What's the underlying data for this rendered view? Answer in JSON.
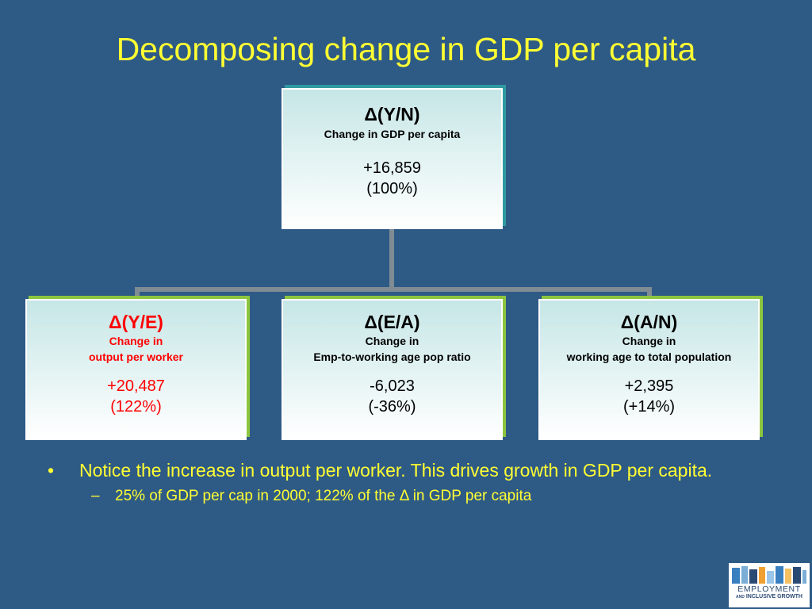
{
  "slide": {
    "title": "Decomposing change in GDP per capita",
    "colors": {
      "background": "#2e5a86",
      "title": "#ffff33",
      "connector": "#7f8c94",
      "top_box_accent": "#2f9aa0",
      "child_box_accent": "#8cc63f",
      "highlight": "#ff0000"
    }
  },
  "diagram": {
    "root": {
      "symbol": "Δ(Y/N)",
      "label": "Change in GDP per capita",
      "value": "+16,859",
      "percent": "(100%)"
    },
    "children": [
      {
        "symbol": "Δ(Y/E)",
        "label_line1": "Change in",
        "label_line2": "output per worker",
        "value": "+20,487",
        "percent": "(122%)",
        "highlighted": true
      },
      {
        "symbol": "Δ(E/A)",
        "label_line1": "Change in",
        "label_line2": "Emp-to-working age pop ratio",
        "value": "-6,023",
        "percent": "(-36%)",
        "highlighted": false
      },
      {
        "symbol": "Δ(A/N)",
        "label_line1": "Change in",
        "label_line2": "working age to total population",
        "value": "+2,395",
        "percent": "(+14%)",
        "highlighted": false
      }
    ]
  },
  "notes": {
    "bullet_marker": "•",
    "bullet": "Notice the increase in output per worker.  This drives growth in GDP per capita.",
    "sub_marker": "–",
    "sub_bullet": "25% of GDP per cap in 2000; 122% of the Δ in GDP per capita"
  },
  "logo": {
    "line1": "EMPLOYMENT",
    "line2_small": "AND",
    "line2": "INCLUSIVE GROWTH"
  }
}
